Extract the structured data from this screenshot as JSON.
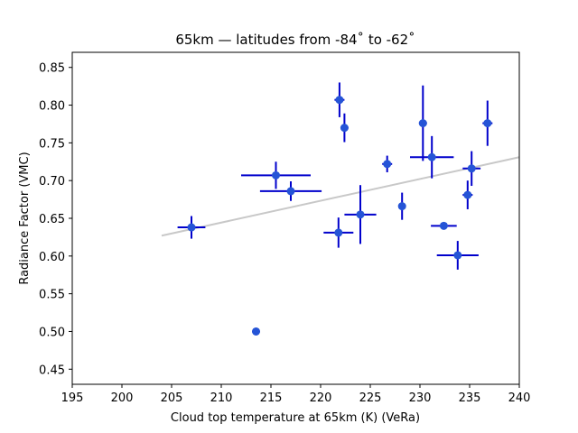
{
  "chart_data": {
    "type": "scatter",
    "title": "65km — latitudes from -84˚ to -62˚",
    "xlabel": "Cloud top temperature at 65km (K) (VeRa)",
    "ylabel": "Radiance Factor (VMC)",
    "xlim": [
      195,
      240
    ],
    "ylim": [
      0.43,
      0.87
    ],
    "xticks": [
      195,
      200,
      205,
      210,
      215,
      220,
      225,
      230,
      235,
      240
    ],
    "yticks": [
      0.45,
      0.5,
      0.55,
      0.6,
      0.65,
      0.7,
      0.75,
      0.8,
      0.85
    ],
    "grid": false,
    "colors": {
      "points": "#0000cc",
      "marker": "#2554d6",
      "fit": "#c8c8c8"
    },
    "points": [
      {
        "x": 207.0,
        "y": 0.638,
        "xerr": 1.4,
        "yerr": 0.015
      },
      {
        "x": 213.5,
        "y": 0.5,
        "xerr": 0.4,
        "yerr": 0.005
      },
      {
        "x": 215.5,
        "y": 0.707,
        "xerr": 3.5,
        "yerr": 0.018
      },
      {
        "x": 217.0,
        "y": 0.686,
        "xerr": 3.1,
        "yerr": 0.013
      },
      {
        "x": 221.8,
        "y": 0.631,
        "xerr": 1.5,
        "yerr": 0.02
      },
      {
        "x": 221.9,
        "y": 0.807,
        "xerr": 0.5,
        "yerr": 0.023
      },
      {
        "x": 222.4,
        "y": 0.77,
        "xerr": 0.4,
        "yerr": 0.019
      },
      {
        "x": 224.0,
        "y": 0.655,
        "xerr": 1.6,
        "yerr": 0.039
      },
      {
        "x": 226.7,
        "y": 0.722,
        "xerr": 0.5,
        "yerr": 0.011
      },
      {
        "x": 228.2,
        "y": 0.666,
        "xerr": 0.3,
        "yerr": 0.018
      },
      {
        "x": 230.3,
        "y": 0.776,
        "xerr": 0.4,
        "yerr": 0.05
      },
      {
        "x": 231.2,
        "y": 0.731,
        "xerr": 2.2,
        "yerr": 0.028
      },
      {
        "x": 232.4,
        "y": 0.64,
        "xerr": 1.3,
        "yerr": 0.004
      },
      {
        "x": 233.8,
        "y": 0.601,
        "xerr": 2.1,
        "yerr": 0.019
      },
      {
        "x": 234.8,
        "y": 0.681,
        "xerr": 0.5,
        "yerr": 0.019
      },
      {
        "x": 235.2,
        "y": 0.716,
        "xerr": 0.9,
        "yerr": 0.023
      },
      {
        "x": 236.8,
        "y": 0.776,
        "xerr": 0.5,
        "yerr": 0.03
      }
    ],
    "fit_line": {
      "x": [
        204.0,
        240.0
      ],
      "y": [
        0.627,
        0.731
      ]
    }
  }
}
